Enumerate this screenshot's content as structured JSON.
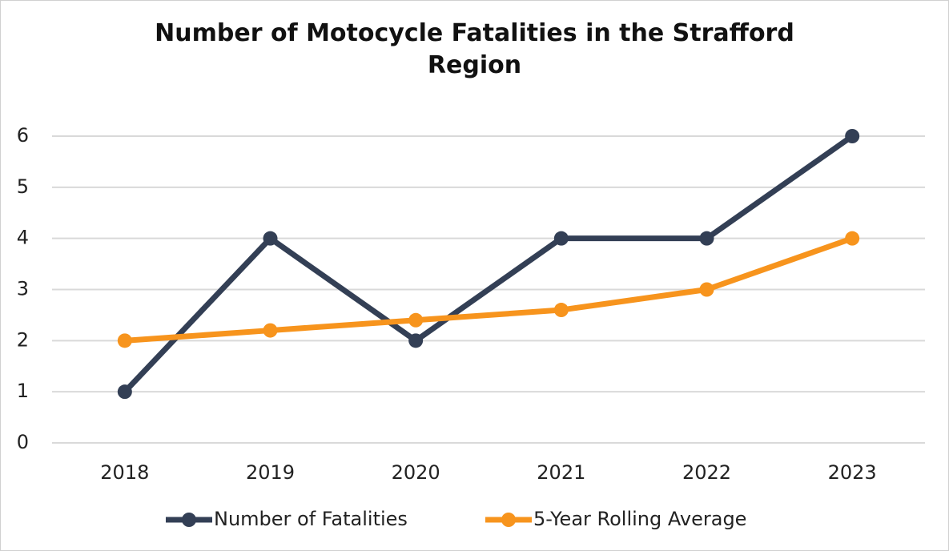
{
  "chart_data": {
    "type": "line",
    "title": "Number of Motocycle Fatalities in the Strafford Region",
    "categories": [
      "2018",
      "2019",
      "2020",
      "2021",
      "2022",
      "2023"
    ],
    "series": [
      {
        "name": "Number of Fatalities",
        "color": "#333f55",
        "values": [
          1,
          4,
          2,
          4,
          4,
          6
        ]
      },
      {
        "name": "5-Year Rolling Average",
        "color": "#f7941d",
        "values": [
          2,
          2.2,
          2.4,
          2.6,
          3,
          4
        ]
      }
    ],
    "ylim": [
      0,
      6
    ],
    "yticks": [
      0,
      1,
      2,
      3,
      4,
      5,
      6
    ],
    "grid": true,
    "legend": "bottom"
  }
}
